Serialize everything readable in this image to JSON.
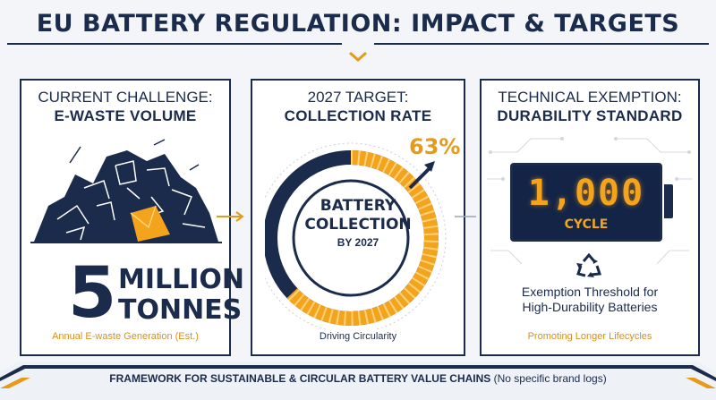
{
  "title": "EU BATTERY REGULATION: IMPACT & TARGETS",
  "panels": [
    {
      "heading_line1": "CURRENT CHALLENGE:",
      "heading_line2": "E-WASTE VOLUME",
      "value": "5",
      "unit_line1": "MILLION",
      "unit_line2": "TONNES",
      "footnote": "Annual E-waste Generation (Est.)",
      "icon": "e-waste-pile-icon"
    },
    {
      "heading_line1": "2027 TARGET:",
      "heading_line2": "COLLECTION RATE",
      "percent_label": "63%",
      "percent_value": 63,
      "ring_line1": "BATTERY",
      "ring_line2": "COLLECTION",
      "ring_line3": "BY 2027",
      "footnote": "Driving Circularity",
      "icon": "trend-arrow-icon"
    },
    {
      "heading_line1": "TECHNICAL EXEMPTION:",
      "heading_line2": "DURABILITY STANDARD",
      "display_value": "1,000",
      "display_unit": "CYCLE",
      "description_line1": "Exemption Threshold for",
      "description_line2": "High-Durability Batteries",
      "footnote": "Promoting Longer Lifecycles",
      "icon": "recycle-icon"
    }
  ],
  "footer": {
    "bold_text": "FRAMEWORK FOR SUSTAINABLE & CIRCULAR BATTERY VALUE CHAINS",
    "normal_text": " (No specific brand logs)"
  },
  "colors": {
    "navy": "#1b2b4b",
    "accent_orange": "#e59a1a",
    "background": "#f3f5f8"
  }
}
